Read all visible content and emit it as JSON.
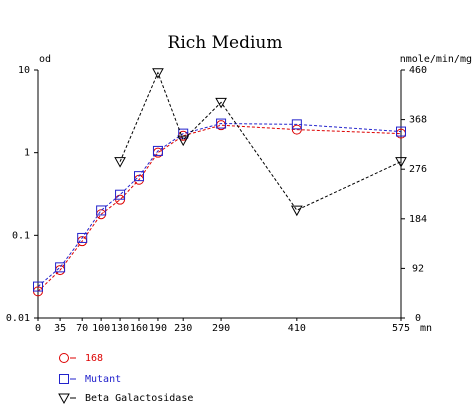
{
  "chart_data": {
    "type": "line",
    "title": "Rich Medium",
    "xlabel": "mn",
    "ylabel_left": "od",
    "ylabel_right": "nmole/min/mg",
    "x_ticks": [
      0,
      35,
      70,
      100,
      130,
      160,
      190,
      230,
      290,
      410,
      575
    ],
    "xlim": [
      0,
      575
    ],
    "y_left_scale": "log",
    "y_left_ticks": [
      "10",
      "1",
      "0.1",
      "0.01"
    ],
    "y_left_lim": [
      0.01,
      10
    ],
    "y_right_ticks": [
      460,
      368,
      276,
      184,
      92,
      0
    ],
    "y_right_lim": [
      0,
      460
    ],
    "grid": false,
    "legend_position": "bottom-left",
    "series": [
      {
        "name": "168",
        "axis": "left",
        "color": "#dd0000",
        "marker": "circle",
        "x": [
          0,
          35,
          70,
          100,
          130,
          160,
          190,
          230,
          290,
          410,
          575
        ],
        "y": [
          0.021,
          0.038,
          0.085,
          0.18,
          0.27,
          0.47,
          1.0,
          1.6,
          2.15,
          1.9,
          1.7
        ]
      },
      {
        "name": "Mutant",
        "axis": "left",
        "color": "#2222cc",
        "marker": "square",
        "x": [
          0,
          35,
          70,
          100,
          130,
          160,
          190,
          230,
          290,
          410,
          575
        ],
        "y": [
          0.024,
          0.041,
          0.093,
          0.2,
          0.31,
          0.52,
          1.05,
          1.7,
          2.25,
          2.2,
          1.8
        ]
      },
      {
        "name": "Beta Galactosidase",
        "axis": "right",
        "color": "#000000",
        "marker": "triangle-down",
        "x": [
          130,
          190,
          230,
          290,
          410,
          575
        ],
        "y": [
          290,
          455,
          330,
          400,
          200,
          290
        ]
      }
    ]
  }
}
